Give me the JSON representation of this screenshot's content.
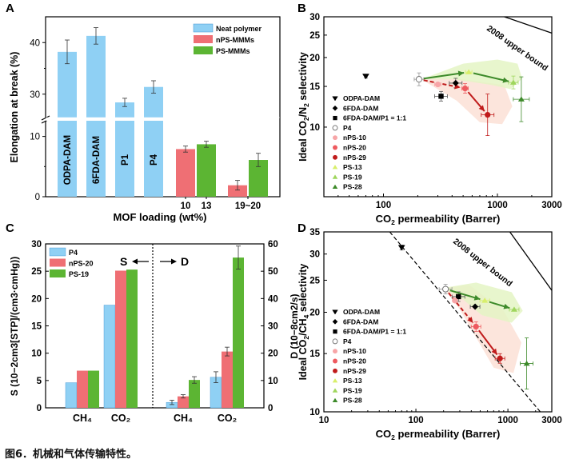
{
  "caption": "图6．机械和气体传输特性。",
  "colors": {
    "blue": "#8fd0f4",
    "blue_edge": "#3a8fd0",
    "red_bar": "#ef6f74",
    "green_bar": "#5cb533",
    "light_red": "#f7a5a7",
    "mid_red": "#ee5a5f",
    "dark_red": "#c01b1b",
    "light_green": "#d8ef6b",
    "mid_green": "#9fd65d",
    "dark_green": "#3d8a2a",
    "red_fill": "#fbe1d6",
    "green_fill": "#e4f5c4"
  },
  "chart_data": [
    {
      "panel": "A",
      "type": "bar",
      "ylabel": "Elongation at break (%)",
      "xlabel": "MOF loading (wt%)",
      "y_break": {
        "lower": [
          0,
          13
        ],
        "upper": [
          25,
          45
        ]
      },
      "yticks_lower": [
        0,
        10
      ],
      "yticks_upper": [
        30,
        40
      ],
      "legend": [
        "Neat polymer",
        "nPS-MMMs",
        "PS-MMMs"
      ],
      "bars": [
        {
          "label": "ODPA-DAM",
          "series": "Neat polymer",
          "value": 38.2,
          "err": 2.3
        },
        {
          "label": "6FDA-DAM",
          "series": "Neat polymer",
          "value": 41.3,
          "err": 1.6
        },
        {
          "label": "P1",
          "series": "Neat polymer",
          "value": 28.4,
          "err": 0.8
        },
        {
          "label": "P4",
          "series": "Neat polymer",
          "value": 31.4,
          "err": 1.2
        },
        {
          "label": "",
          "series": "nPS-MMMs",
          "value": 7.9,
          "err": 0.5
        },
        {
          "label": "",
          "series": "PS-MMMs",
          "value": 8.7,
          "err": 0.5
        },
        {
          "label": "",
          "series": "nPS-MMMs",
          "value": 1.9,
          "err": 0.8
        },
        {
          "label": "",
          "series": "PS-MMMs",
          "value": 6.1,
          "err": 1.1
        }
      ],
      "group_labels": [
        "10",
        "13",
        "19~20"
      ]
    },
    {
      "panel": "B",
      "type": "scatter",
      "xlabel": "CO2 permeability (Barrer)",
      "ylabel": "Ideal CO2/N2 selectivity",
      "xscale": "log",
      "yscale": "log",
      "xlim": [
        30,
        3000
      ],
      "ylim": [
        5,
        30
      ],
      "xticks": [
        100,
        1000,
        3000
      ],
      "yticks": [
        10,
        15,
        20,
        25,
        30
      ],
      "annotation": "2008 upper bound",
      "points": [
        {
          "name": "ODPA-DAM",
          "x": 70,
          "y": 16.6
        },
        {
          "name": "6FDA-DAM",
          "x": 430,
          "y": 15.5
        },
        {
          "name": "6FDA-DAM/P1 = 1:1",
          "x": 320,
          "y": 13.6
        },
        {
          "name": "P4",
          "x": 205,
          "y": 16.1
        },
        {
          "name": "nPS-10",
          "x": 300,
          "y": 15.3
        },
        {
          "name": "nPS-20",
          "x": 520,
          "y": 14.7
        },
        {
          "name": "nPS-29",
          "x": 820,
          "y": 11.3
        },
        {
          "name": "PS-13",
          "x": 560,
          "y": 17.3
        },
        {
          "name": "PS-19",
          "x": 1380,
          "y": 15.6
        },
        {
          "name": "PS-28",
          "x": 1620,
          "y": 13.2
        }
      ]
    },
    {
      "panel": "C",
      "type": "bar",
      "ylabel": "S (10⁻²cm³[STP]/(cm³·cmHg))",
      "ylabel_right": "D (10⁻⁸cm²/s)",
      "ylim": [
        0,
        30
      ],
      "ylim_right": [
        0,
        60
      ],
      "yticks": [
        0,
        5,
        10,
        15,
        20,
        25,
        30
      ],
      "yticks_right": [
        0,
        10,
        20,
        30,
        40,
        50,
        60
      ],
      "categories": [
        "CH4",
        "CO2",
        "CH4",
        "CO2"
      ],
      "category_labels": [
        "CH₄",
        "CO₂",
        "CH₄",
        "CO₂"
      ],
      "legend": [
        "P4",
        "nPS-20",
        "PS-19"
      ],
      "s_label": "S",
      "d_label": "D",
      "S": {
        "CH4": [
          4.6,
          6.8,
          6.8
        ],
        "CO2": [
          18.8,
          25.1,
          25.3
        ]
      },
      "D": {
        "CH4": [
          2.0,
          4.2,
          10.2
        ],
        "CO2": [
          11.2,
          20.6,
          55.0
        ]
      }
    },
    {
      "panel": "D",
      "type": "scatter",
      "xlabel": "CO2 permeability (Barrer)",
      "ylabel": "Ideal CO2/CH4 selectivity",
      "xscale": "log",
      "yscale": "log",
      "xlim": [
        10,
        3000
      ],
      "ylim": [
        10,
        35
      ],
      "xticks": [
        10,
        100,
        1000,
        3000
      ],
      "yticks": [
        10,
        15,
        20,
        25,
        30,
        35
      ],
      "annotation": "2008 upper bound",
      "points": [
        {
          "name": "ODPA-DAM",
          "x": 70,
          "y": 31.4
        },
        {
          "name": "6FDA-DAM",
          "x": 440,
          "y": 20.8
        },
        {
          "name": "6FDA-DAM/P1 = 1:1",
          "x": 290,
          "y": 22.3
        },
        {
          "name": "P4",
          "x": 210,
          "y": 23.5
        },
        {
          "name": "nPS-10",
          "x": 265,
          "y": 21.7
        },
        {
          "name": "nPS-20",
          "x": 450,
          "y": 18.1
        },
        {
          "name": "nPS-29",
          "x": 820,
          "y": 14.5
        },
        {
          "name": "PS-13",
          "x": 560,
          "y": 21.7
        },
        {
          "name": "PS-19",
          "x": 1170,
          "y": 20.4
        },
        {
          "name": "PS-28",
          "x": 1600,
          "y": 14.0
        }
      ]
    }
  ],
  "labels": {
    "A": {
      "panel": "A",
      "ylabel": "Elongation at break (%)",
      "xlabel": "MOF loading (wt%)",
      "legend": [
        "Neat polymer",
        "nPS-MMMs",
        "PS-MMMs"
      ],
      "bar_names": [
        "ODPA-DAM",
        "6FDA-DAM",
        "P1",
        "P4"
      ],
      "groups": [
        "10",
        "13",
        "19~20"
      ],
      "ticks_lower": [
        "0",
        "10"
      ],
      "ticks_upper": [
        "30",
        "40"
      ]
    },
    "B": {
      "panel": "B",
      "xlabel_pre": "CO",
      "xlabel_sub": "2",
      "xlabel_post": " permeability (Barrer)",
      "ylabel_pre": "Ideal CO",
      "ylabel_sub": "2",
      "ylabel_mid": "/N",
      "ylabel_sub2": "2",
      "ylabel_post": " selectivity",
      "ub": "2008 upper bound",
      "xticks": [
        "100",
        "1000",
        "3000"
      ],
      "yticks": [
        "10",
        "15",
        "20",
        "25",
        "30"
      ]
    },
    "C": {
      "panel": "C",
      "s_label": "S",
      "d_label": "D",
      "legend": [
        "P4",
        "nPS-20",
        "PS-19"
      ],
      "yticks": [
        "0",
        "5",
        "10",
        "15",
        "20",
        "25",
        "30"
      ],
      "yticks_right": [
        "0",
        "10",
        "20",
        "30",
        "40",
        "50",
        "60"
      ],
      "cats": [
        "CH₄",
        "CO₂",
        "CH₄",
        "CO₂"
      ]
    },
    "D": {
      "panel": "D",
      "xlabel_pre": "CO",
      "xlabel_sub": "2",
      "xlabel_post": " permeability (Barrer)",
      "ylabel_pre": "Ideal CO",
      "ylabel_sub": "2",
      "ylabel_mid": "/CH",
      "ylabel_sub2": "4",
      "ylabel_post": " selectivity",
      "ub": "2008 upper bound",
      "xticks": [
        "10",
        "100",
        "1000",
        "3000"
      ],
      "yticks": [
        "10",
        "15",
        "20",
        "25",
        "30",
        "35"
      ]
    },
    "legend_names": [
      "ODPA-DAM",
      "6FDA-DAM",
      "6FDA-DAM/P1 = 1:1",
      "P4",
      "nPS-10",
      "nPS-20",
      "nPS-29",
      "PS-13",
      "PS-19",
      "PS-28"
    ]
  }
}
